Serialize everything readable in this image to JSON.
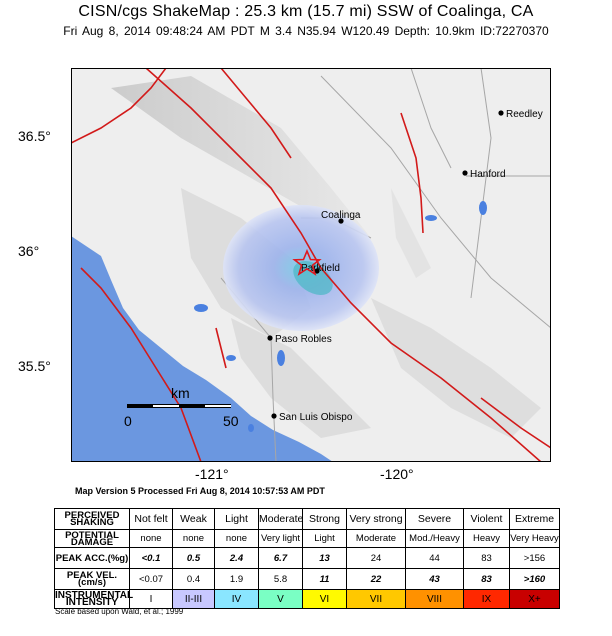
{
  "header": {
    "title": "CISN/cgs ShakeMap : 25.3 km (15.7 mi) SSW of Coalinga, CA",
    "subtitle": "Fri Aug  8, 2014 09:48:24 AM PDT   M 3.4   N35.94 W120.49   Depth: 10.9km   ID:72270370"
  },
  "map": {
    "y_axis_labels": [
      "36.5°",
      "36°",
      "35.5°"
    ],
    "x_axis_labels": [
      "-121°",
      "-120°"
    ],
    "cities": [
      "Reedley",
      "Hanford",
      "Coalinga",
      "Parkfield",
      "Paso Robles",
      "San Luis Obispo"
    ],
    "scale_bar": {
      "unit": "km",
      "start": "0",
      "end": "50"
    },
    "epicenter_icon": "star-icon",
    "colors": {
      "ocean": "#6b97e0",
      "fault": "#d21a1a",
      "land": "#eeeeee",
      "shaking": "#8ea7e8"
    }
  },
  "version_note": "Map Version 5 Processed Fri Aug  8, 2014 10:57:53 AM PDT",
  "legend": {
    "rows": [
      {
        "label": "PERCEIVED SHAKING",
        "values": [
          "Not felt",
          "Weak",
          "Light",
          "Moderate",
          "Strong",
          "Very strong",
          "Severe",
          "Violent",
          "Extreme"
        ]
      },
      {
        "label": "POTENTIAL DAMAGE",
        "values": [
          "none",
          "none",
          "none",
          "Very light",
          "Light",
          "Moderate",
          "Mod./Heavy",
          "Heavy",
          "Very Heavy"
        ]
      },
      {
        "label": "PEAK ACC.(%g)",
        "values": [
          "<0.1",
          "0.5",
          "2.4",
          "6.7",
          "13",
          "24",
          "44",
          "83",
          ">156"
        ]
      },
      {
        "label": "PEAK VEL.(cm/s)",
        "values": [
          "<0.07",
          "0.4",
          "1.9",
          "5.8",
          "11",
          "22",
          "43",
          "83",
          ">160"
        ]
      },
      {
        "label": "INSTRUMENTAL INTENSITY",
        "values": [
          "I",
          "II-III",
          "IV",
          "V",
          "VI",
          "VII",
          "VIII",
          "IX",
          "X+"
        ]
      }
    ],
    "intensity_colors": [
      "#ffffff",
      "#c8c8ff",
      "#8ae6ff",
      "#7affc4",
      "#fffa00",
      "#ffc800",
      "#ff9100",
      "#ff2800",
      "#c80000"
    ]
  },
  "scale_note": "Scale based upon Wald, et al.; 1999"
}
